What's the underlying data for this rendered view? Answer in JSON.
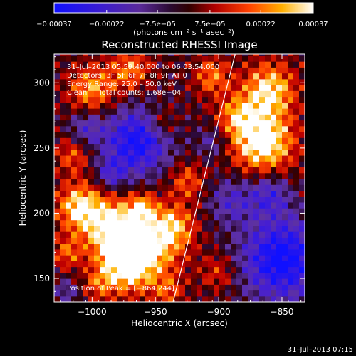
{
  "chart_data": {
    "type": "heatmap",
    "title": "Reconstructed RHESSI Image",
    "xlabel": "Heliocentric X (arcsec)",
    "ylabel": "Heliocentric Y (arcsec)",
    "xlim": [
      -1030,
      -832
    ],
    "ylim": [
      132,
      322
    ],
    "x_ticks": [
      {
        "value": -1000,
        "label": "−1000"
      },
      {
        "value": -950,
        "label": "−950"
      },
      {
        "value": -900,
        "label": "−900"
      },
      {
        "value": -850,
        "label": "−850"
      }
    ],
    "y_ticks": [
      {
        "value": 150,
        "label": "150"
      },
      {
        "value": 200,
        "label": "200"
      },
      {
        "value": 250,
        "label": "250"
      },
      {
        "value": 300,
        "label": "300"
      }
    ],
    "colorbar": {
      "min": -0.00037,
      "max": 0.00037,
      "colormap": "blue-purple-red-orange-yellow-white",
      "ticks": [
        {
          "value": -0.00037,
          "label": "−0.00037"
        },
        {
          "value": -0.00022,
          "label": "−0.00022"
        },
        {
          "value": -7.5e-05,
          "label": "−7.5e−05"
        },
        {
          "value": 7.5e-05,
          "label": "7.5e−05"
        },
        {
          "value": 0.00022,
          "label": "0.00022"
        },
        {
          "value": 0.00037,
          "label": "0.00037"
        }
      ],
      "unit_label": "(photons cm⁻² s⁻¹ asec⁻²)"
    },
    "annotations": [
      "31–Jul–2013 05:59:40.000 to 06:03:54.000",
      "Detectors: 3F 5F 6F 7F 8F 9F AT 0",
      "Energy Range: 25.0 – 50.0 keV",
      "Clean     Total counts: 1.68e+04"
    ],
    "peak_label": "Position of Peak = [−864,244]",
    "peak": {
      "x": -864,
      "y": 244
    },
    "limb_line": {
      "points": [
        [
          -936,
          132
        ],
        [
          -887,
          322
        ]
      ]
    },
    "grid": false
  },
  "footer_timestamp": "31–Jul–2013 07:15"
}
